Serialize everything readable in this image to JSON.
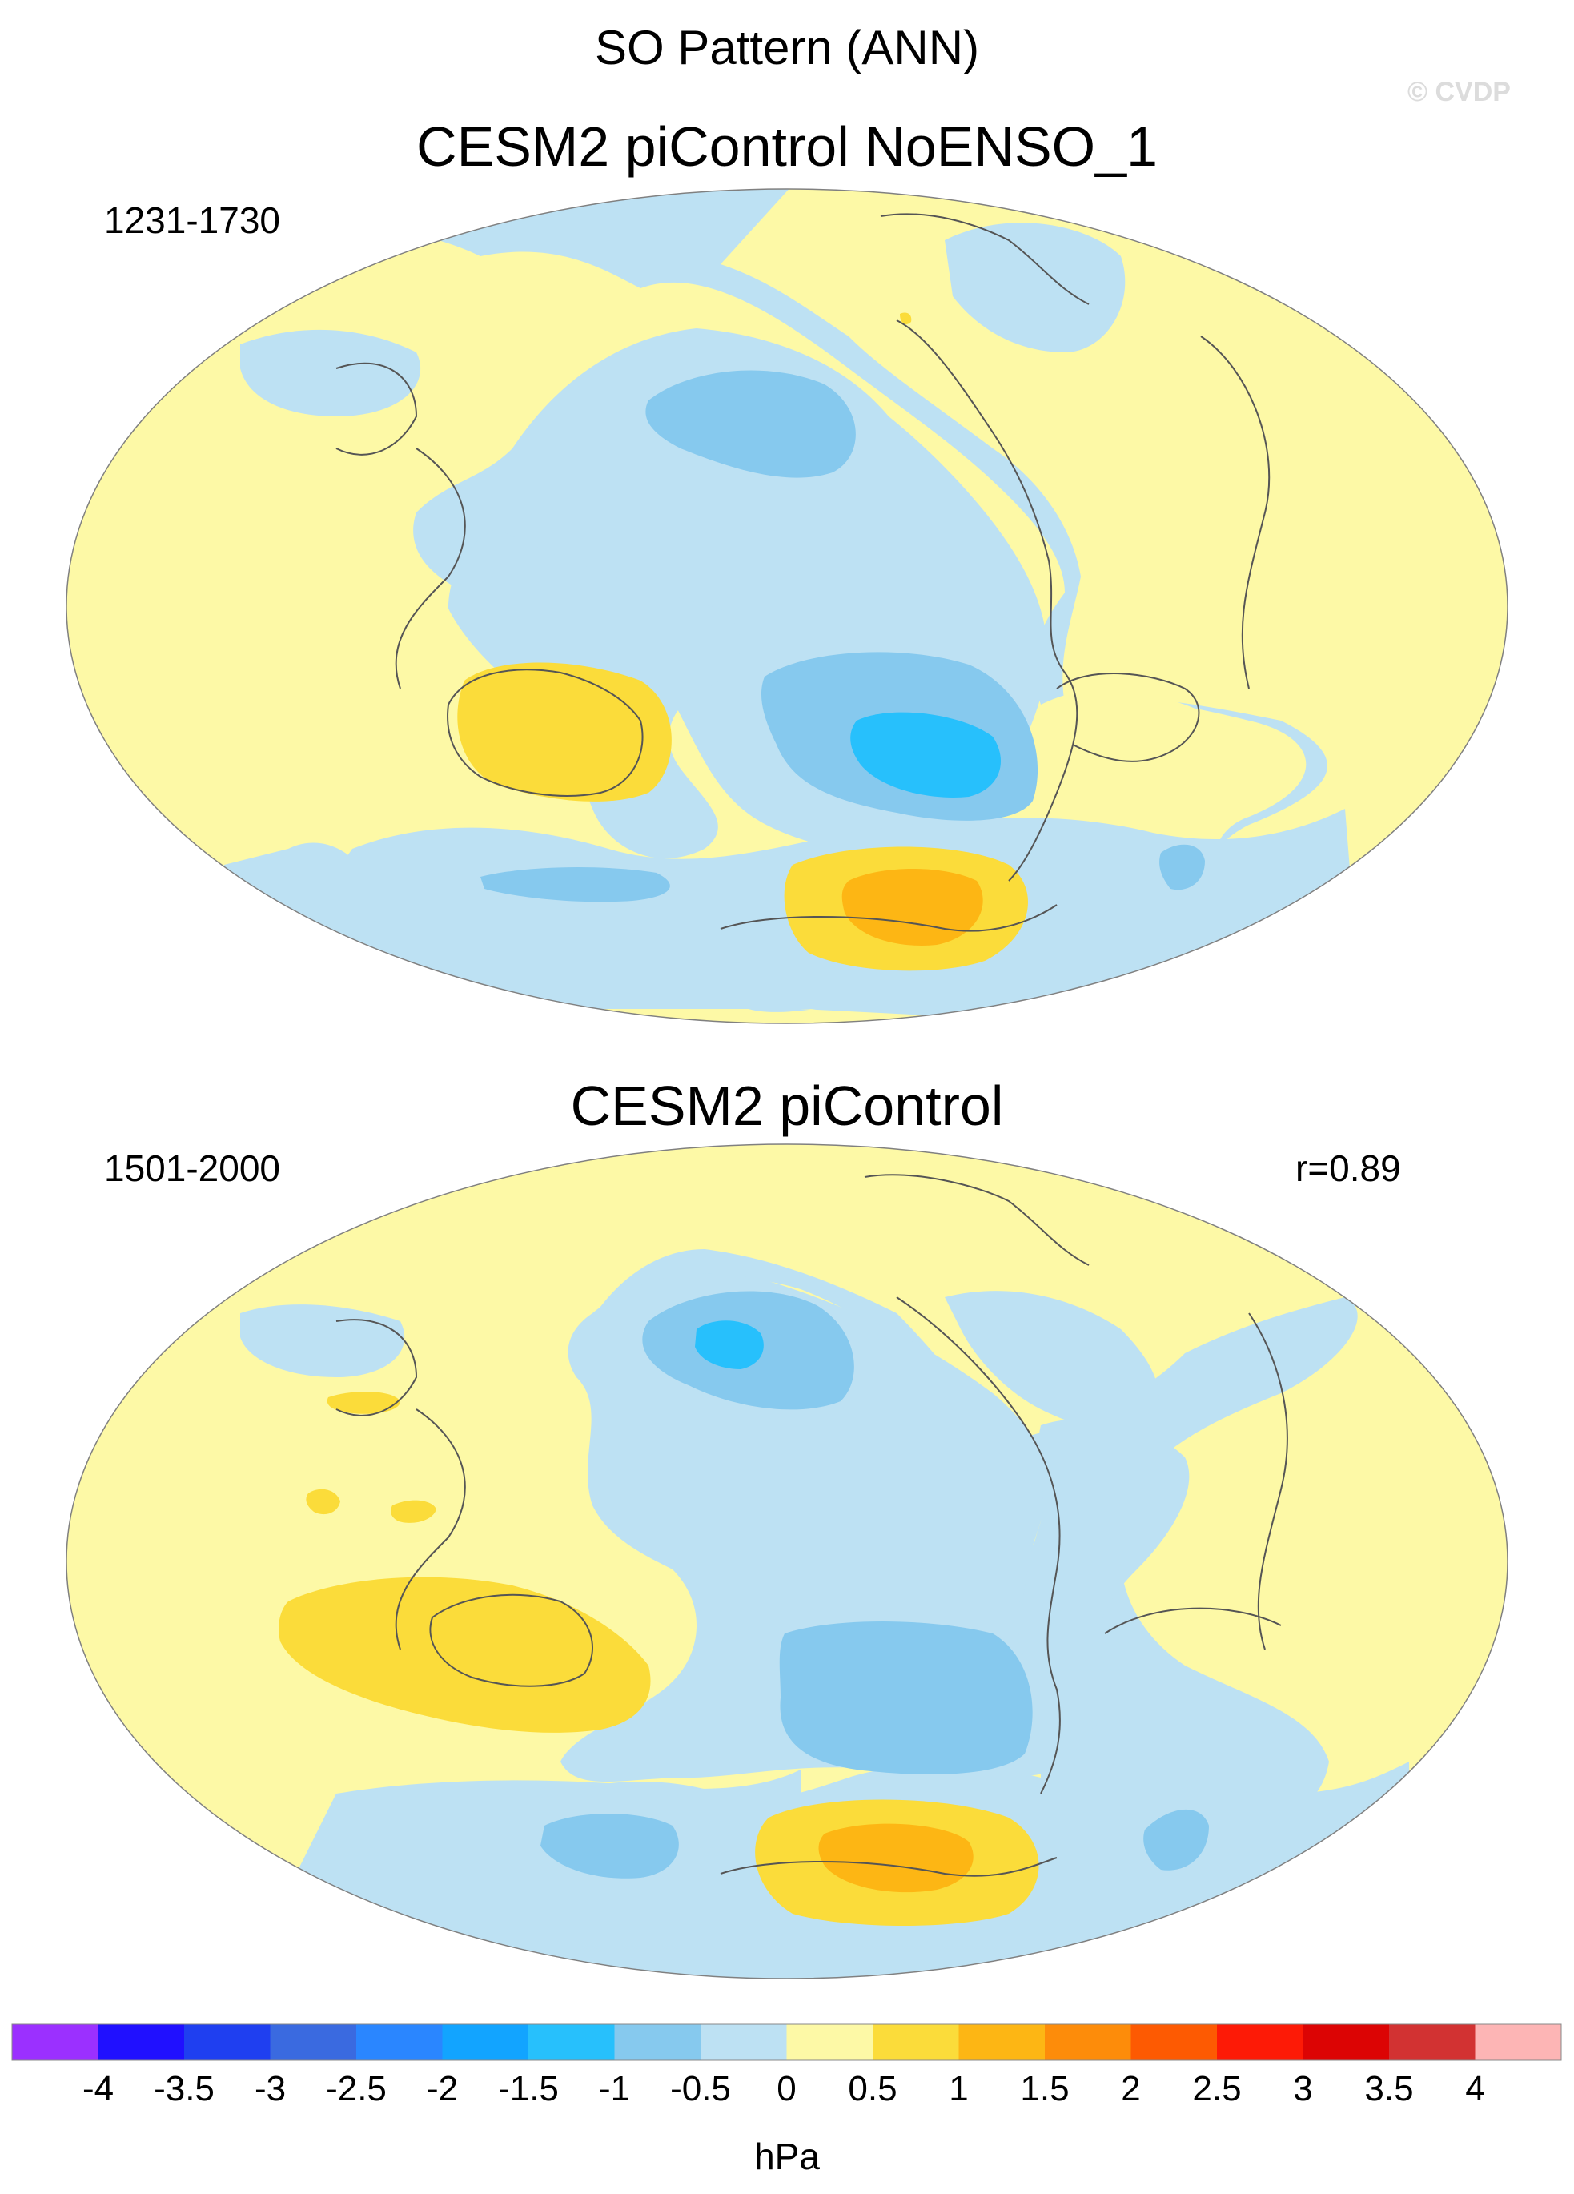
{
  "title": "SO Pattern (ANN)",
  "copyright": "© CVDP",
  "panels": [
    {
      "title": "CESM2 piControl NoENSO_1",
      "period": "1231-1730",
      "stat": ""
    },
    {
      "title": "CESM2 piControl",
      "period": "1501-2000",
      "stat": "r=0.89"
    }
  ],
  "colorbar": {
    "unit": "hPa",
    "tick_labels": [
      "-4",
      "-3.5",
      "-3",
      "-2.5",
      "-2",
      "-1.5",
      "-1",
      "-0.5",
      "0",
      "0.5",
      "1",
      "1.5",
      "2",
      "2.5",
      "3",
      "3.5",
      "4"
    ],
    "colors": [
      "#9b30ff",
      "#2010ff",
      "#1f3ff0",
      "#3a6ae0",
      "#2a86ff",
      "#12a4ff",
      "#27c0fc",
      "#86c9ee",
      "#bde1f3",
      "#fdf9a6",
      "#fbdc3a",
      "#fdb614",
      "#fd8c0a",
      "#fd5a02",
      "#fd1a06",
      "#dc0404",
      "#d23232",
      "#fdb5b5"
    ]
  },
  "map_colors": {
    "ocean_neutral": "#bde1f3",
    "land_neutral": "#fdf9a6",
    "neg_weak": "#86c9ee",
    "neg_strong": "#27c0fc",
    "pos_weak": "#fbdc3a",
    "pos_strong": "#fdb614",
    "coast": "#555555"
  }
}
